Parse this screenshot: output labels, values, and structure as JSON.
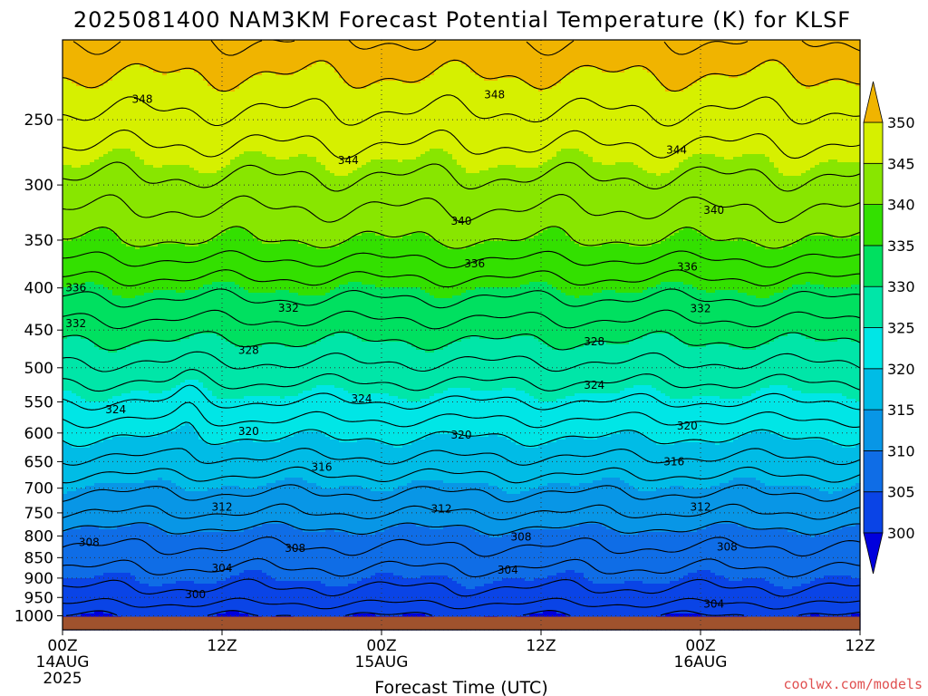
{
  "chart_data": {
    "type": "heatmap",
    "title": "2025081400 NAM3KM Forecast Potential Temperature (K) for KLSF",
    "xlabel": "Forecast Time (UTC)",
    "y_scale": "log-pressure (inverted)",
    "y_ticks_hPa": [
      250,
      300,
      350,
      400,
      450,
      500,
      550,
      600,
      650,
      700,
      750,
      800,
      850,
      900,
      950,
      1000
    ],
    "y_range_hPa": [
      1040,
      200
    ],
    "x_range_hours": [
      0,
      60
    ],
    "x_ticks": [
      {
        "hour": 0,
        "label": "00Z",
        "date": "14AUG",
        "year": "2025"
      },
      {
        "hour": 12,
        "label": "12Z",
        "date": "",
        "year": ""
      },
      {
        "hour": 24,
        "label": "00Z",
        "date": "15AUG",
        "year": ""
      },
      {
        "hour": 36,
        "label": "12Z",
        "date": "",
        "year": ""
      },
      {
        "hour": 48,
        "label": "00Z",
        "date": "16AUG",
        "year": ""
      },
      {
        "hour": 60,
        "label": "12Z",
        "date": "",
        "year": ""
      }
    ],
    "grid": true,
    "contour_interval_K": 2,
    "fill_interval_K": 5,
    "colorbar": {
      "position": "right",
      "levels": [
        300,
        305,
        310,
        315,
        320,
        325,
        330,
        335,
        340,
        345,
        350
      ],
      "colors": [
        "#0000dd",
        "#0a44e6",
        "#0f6de6",
        "#0896e6",
        "#00bce6",
        "#00e6e6",
        "#00e6a8",
        "#00e060",
        "#33e000",
        "#88e600",
        "#d6f000",
        "#f5e600",
        "#f0b400"
      ],
      "extend": "both"
    },
    "theta_profile_K": {
      "pressure_hPa": [
        1000,
        950,
        900,
        850,
        800,
        750,
        700,
        650,
        600,
        550,
        500,
        450,
        400,
        350,
        300,
        250,
        200
      ],
      "theta_K": [
        300,
        303,
        305,
        307,
        309,
        312,
        314.5,
        317.5,
        320.5,
        324,
        327.5,
        331,
        335,
        340,
        343.5,
        347.5,
        352
      ]
    },
    "contour_labels": [
      {
        "value": "348",
        "hour": 6.0,
        "pressure": 236
      },
      {
        "value": "348",
        "hour": 32.5,
        "pressure": 233
      },
      {
        "value": "344",
        "hour": 21.5,
        "pressure": 280
      },
      {
        "value": "344",
        "hour": 46.2,
        "pressure": 272
      },
      {
        "value": "340",
        "hour": 30.0,
        "pressure": 332
      },
      {
        "value": "340",
        "hour": 49.0,
        "pressure": 322
      },
      {
        "value": "336",
        "hour": 31.0,
        "pressure": 374
      },
      {
        "value": "336",
        "hour": 47.0,
        "pressure": 377
      },
      {
        "value": "336",
        "hour": 1.0,
        "pressure": 400
      },
      {
        "value": "332",
        "hour": 17.0,
        "pressure": 423
      },
      {
        "value": "332",
        "hour": 48.0,
        "pressure": 424
      },
      {
        "value": "332",
        "hour": 1.0,
        "pressure": 442
      },
      {
        "value": "328",
        "hour": 14.0,
        "pressure": 476
      },
      {
        "value": "328",
        "hour": 40.0,
        "pressure": 465
      },
      {
        "value": "324",
        "hour": 40.0,
        "pressure": 525
      },
      {
        "value": "324",
        "hour": 22.5,
        "pressure": 545
      },
      {
        "value": "324",
        "hour": 4.0,
        "pressure": 562
      },
      {
        "value": "320",
        "hour": 14.0,
        "pressure": 597
      },
      {
        "value": "320",
        "hour": 30.0,
        "pressure": 603
      },
      {
        "value": "320",
        "hour": 47.0,
        "pressure": 588
      },
      {
        "value": "316",
        "hour": 19.5,
        "pressure": 660
      },
      {
        "value": "316",
        "hour": 46.0,
        "pressure": 650
      },
      {
        "value": "312",
        "hour": 12.0,
        "pressure": 738
      },
      {
        "value": "312",
        "hour": 28.5,
        "pressure": 742
      },
      {
        "value": "312",
        "hour": 48.0,
        "pressure": 738
      },
      {
        "value": "308",
        "hour": 2.0,
        "pressure": 815
      },
      {
        "value": "308",
        "hour": 17.5,
        "pressure": 828
      },
      {
        "value": "308",
        "hour": 34.5,
        "pressure": 802
      },
      {
        "value": "308",
        "hour": 50.0,
        "pressure": 825
      },
      {
        "value": "304",
        "hour": 12.0,
        "pressure": 876
      },
      {
        "value": "304",
        "hour": 33.5,
        "pressure": 880
      },
      {
        "value": "304",
        "hour": 49.0,
        "pressure": 968
      },
      {
        "value": "300",
        "hour": 10.0,
        "pressure": 942
      }
    ]
  },
  "credit": "coolwx.com/models"
}
